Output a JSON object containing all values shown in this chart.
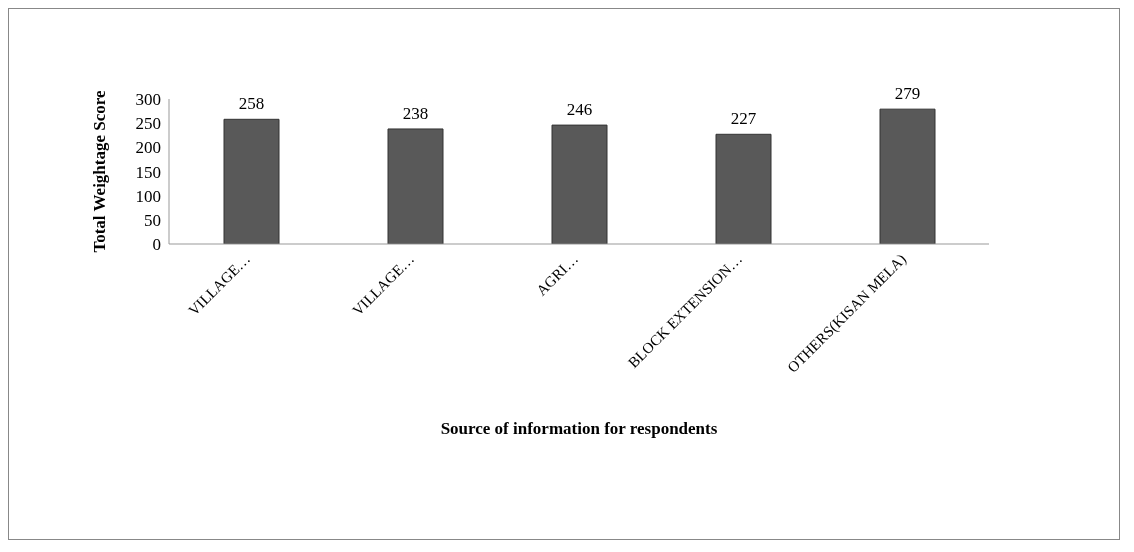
{
  "chart_data": {
    "type": "bar",
    "xlabel": "Source of information for respondents",
    "ylabel": "Total Weightage Score",
    "categories": [
      "VILLAGE…",
      "VILLAGE…",
      "AGRI…",
      "BLOCK EXTENSION…",
      "OTHERS(KISAN MELA)"
    ],
    "values": [
      258,
      238,
      246,
      227,
      279
    ],
    "color": "#595959",
    "ylim": [
      0,
      300
    ],
    "yticks": [
      0,
      50,
      100,
      150,
      200,
      250,
      300
    ],
    "grid": false,
    "data_labels": true
  }
}
